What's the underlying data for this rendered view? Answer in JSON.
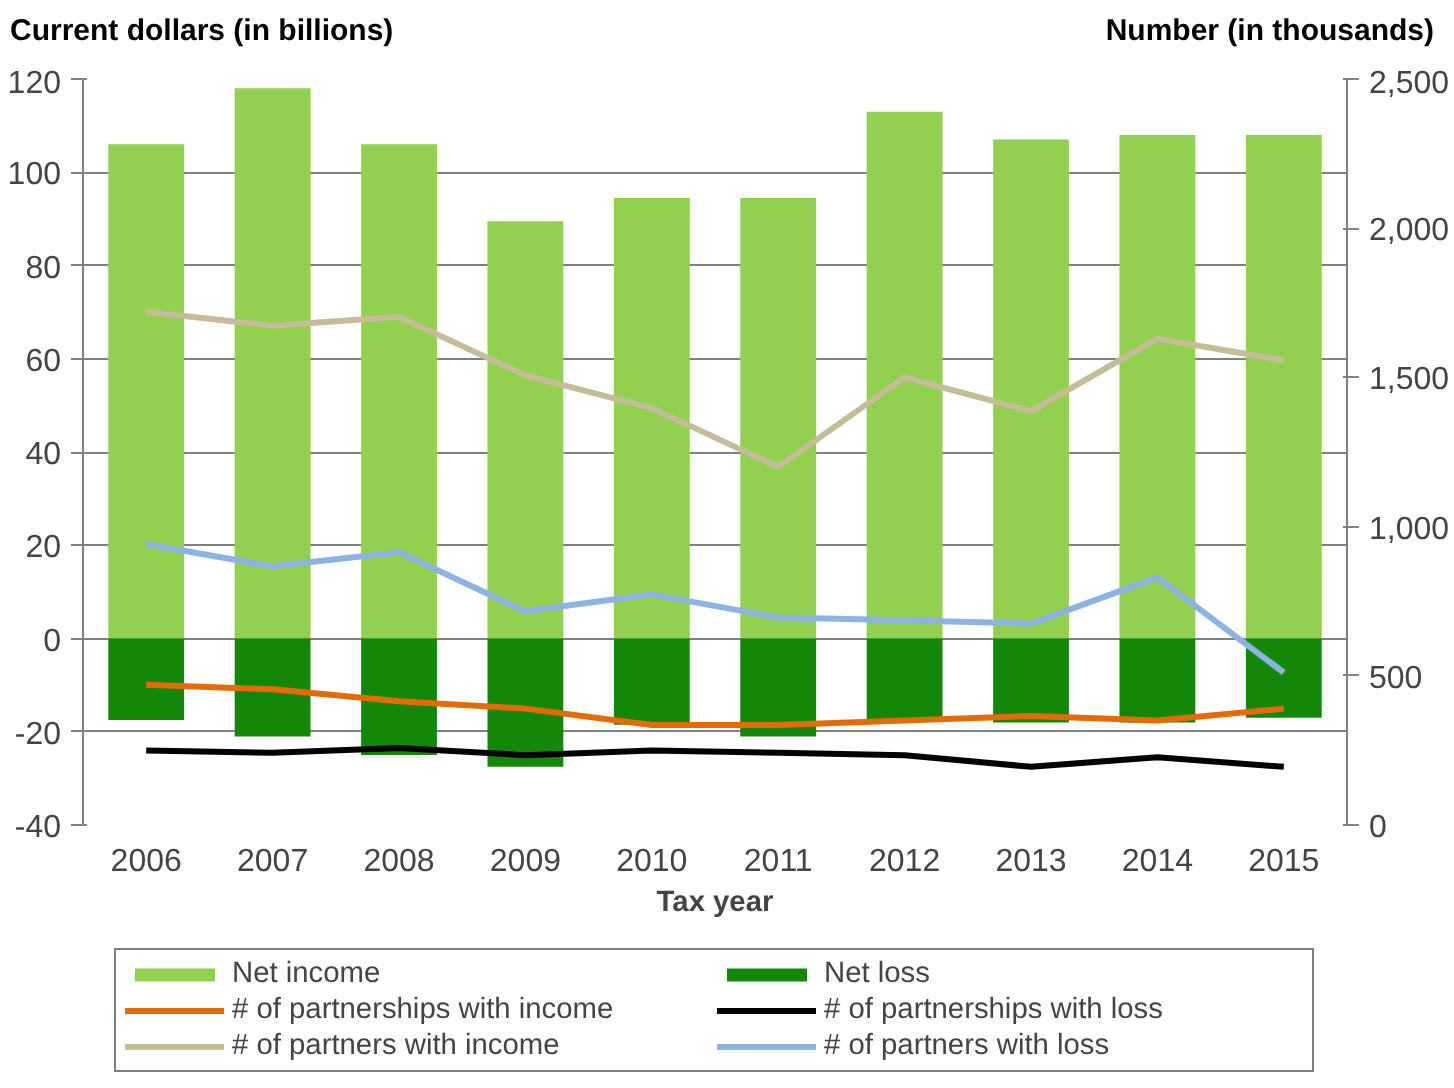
{
  "chart_data": {
    "type": "bar",
    "ylabel": "Current dollars (in billions)",
    "y2label": "Number (in thousands)",
    "xlabel": "Tax year",
    "categories": [
      "2006",
      "2007",
      "2008",
      "2009",
      "2010",
      "2011",
      "2012",
      "2013",
      "2014",
      "2015"
    ],
    "series": [
      {
        "name": "Net income",
        "color": "#92d050",
        "values": [
          106,
          118,
          106,
          89.5,
          94.5,
          94.5,
          113,
          107,
          108,
          108
        ]
      },
      {
        "name": "Net loss",
        "color": "#138808",
        "values": [
          -17.5,
          -21,
          -25,
          -27.5,
          -18.5,
          -21,
          -17.5,
          -18,
          -18,
          -17
        ]
      },
      {
        "name": "# of partnerships with income",
        "type": "line",
        "axis": "y2",
        "color": "#e36c09",
        "values": [
          470,
          455,
          415,
          390,
          335,
          335,
          350,
          365,
          350,
          390
        ]
      },
      {
        "name": "# of partnerships with loss",
        "type": "line",
        "axis": "y2",
        "color": "#000000",
        "values": [
          250,
          242,
          258,
          234,
          250,
          242,
          234,
          195,
          227,
          195
        ]
      },
      {
        "name": "# of partners with income",
        "type": "line",
        "axis": "y2",
        "color": "#c4bd97",
        "values": [
          1720,
          1673,
          1703,
          1507,
          1397,
          1200,
          1500,
          1387,
          1630,
          1557
        ]
      },
      {
        "name": "# of partners with loss",
        "type": "line",
        "axis": "y2",
        "color": "#8db3e2",
        "values": [
          941,
          867,
          914,
          716,
          773,
          695,
          686,
          675,
          830,
          511
        ]
      }
    ],
    "ylim": [
      -40,
      120
    ],
    "yticks": [
      -40,
      -20,
      0,
      20,
      40,
      60,
      80,
      100,
      120
    ],
    "y2lim": [
      0,
      2500
    ],
    "y2ticks": [
      {
        "value": 0,
        "label": "0"
      },
      {
        "value": 500,
        "label": "500"
      },
      {
        "value": 1000,
        "label": "1,000"
      },
      {
        "value": 1500,
        "label": "1,500"
      },
      {
        "value": 2000,
        "label": "2,000"
      },
      {
        "value": 2500,
        "label": "2,500"
      }
    ],
    "stacked": true,
    "grid": "y",
    "legend": "bottom",
    "marker": "none",
    "line_style": "solid"
  }
}
